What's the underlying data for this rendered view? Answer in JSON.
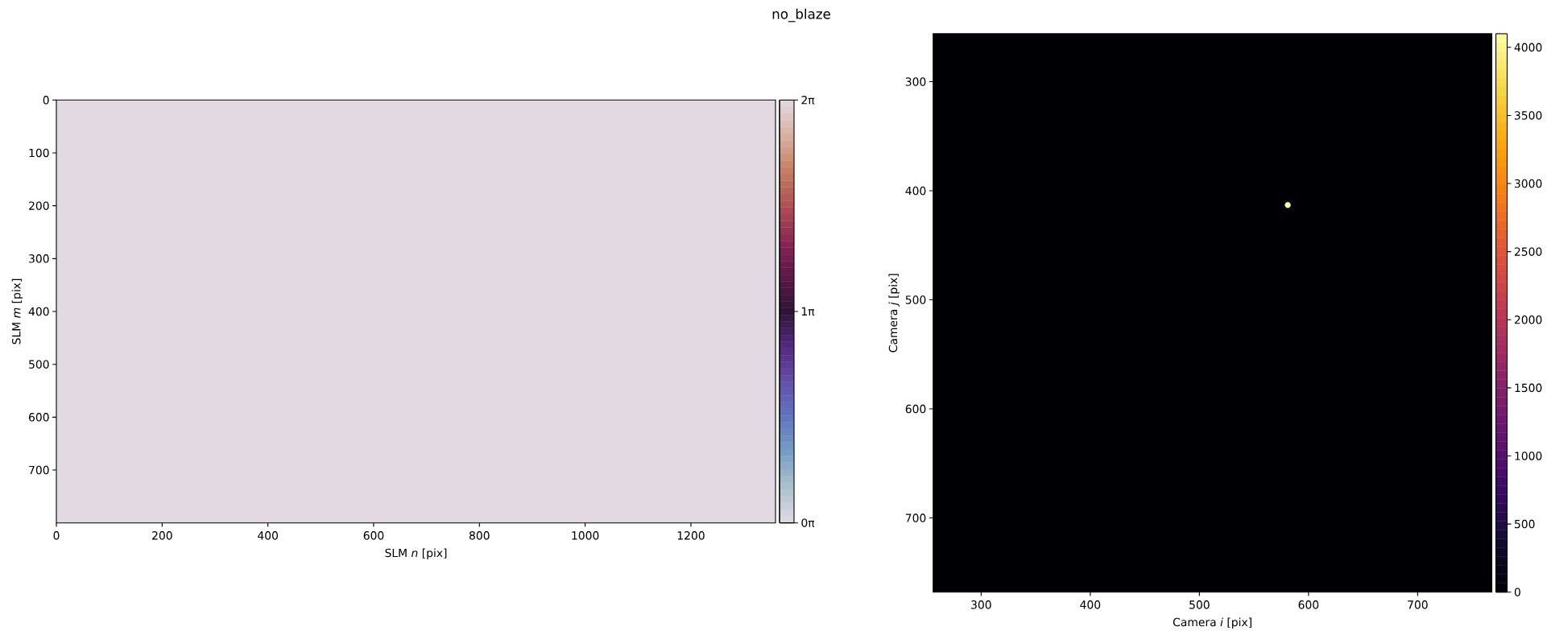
{
  "chart_data": [
    {
      "type": "heatmap",
      "title": "no_blaze",
      "xlabel": "SLM *n* [pix]",
      "ylabel": "SLM *m* [pix]",
      "xlim": [
        0,
        1360
      ],
      "ylim": [
        800,
        0
      ],
      "xticks": [
        0,
        200,
        400,
        600,
        800,
        1000,
        1200
      ],
      "yticks": [
        0,
        100,
        200,
        300,
        400,
        500,
        600,
        700
      ],
      "cells": [
        [
          0
        ]
      ],
      "clim": [
        0,
        6.2832
      ],
      "cticks": [
        {
          "value": 0,
          "label": "0π"
        },
        {
          "value": 3.1416,
          "label": "1π"
        },
        {
          "value": 6.2832,
          "label": "2π"
        }
      ]
    },
    {
      "type": "heatmap",
      "xlabel": "Camera *i* [pix]",
      "ylabel": "Camera *j* [pix]",
      "xlim": [
        256,
        768
      ],
      "ylim": [
        768,
        256
      ],
      "xticks": [
        300,
        400,
        500,
        600,
        700
      ],
      "yticks": [
        300,
        400,
        500,
        600,
        700
      ],
      "cells": [
        [
          0
        ]
      ],
      "series": [
        {
          "type": "scatter",
          "x": [
            581
          ],
          "values": [
            413
          ],
          "color": "#fcffa4"
        }
      ],
      "marker": "circle",
      "clim": [
        0,
        4100
      ],
      "cticks": [
        0,
        500,
        1000,
        1500,
        2000,
        2500,
        3000,
        3500,
        4000
      ]
    }
  ]
}
